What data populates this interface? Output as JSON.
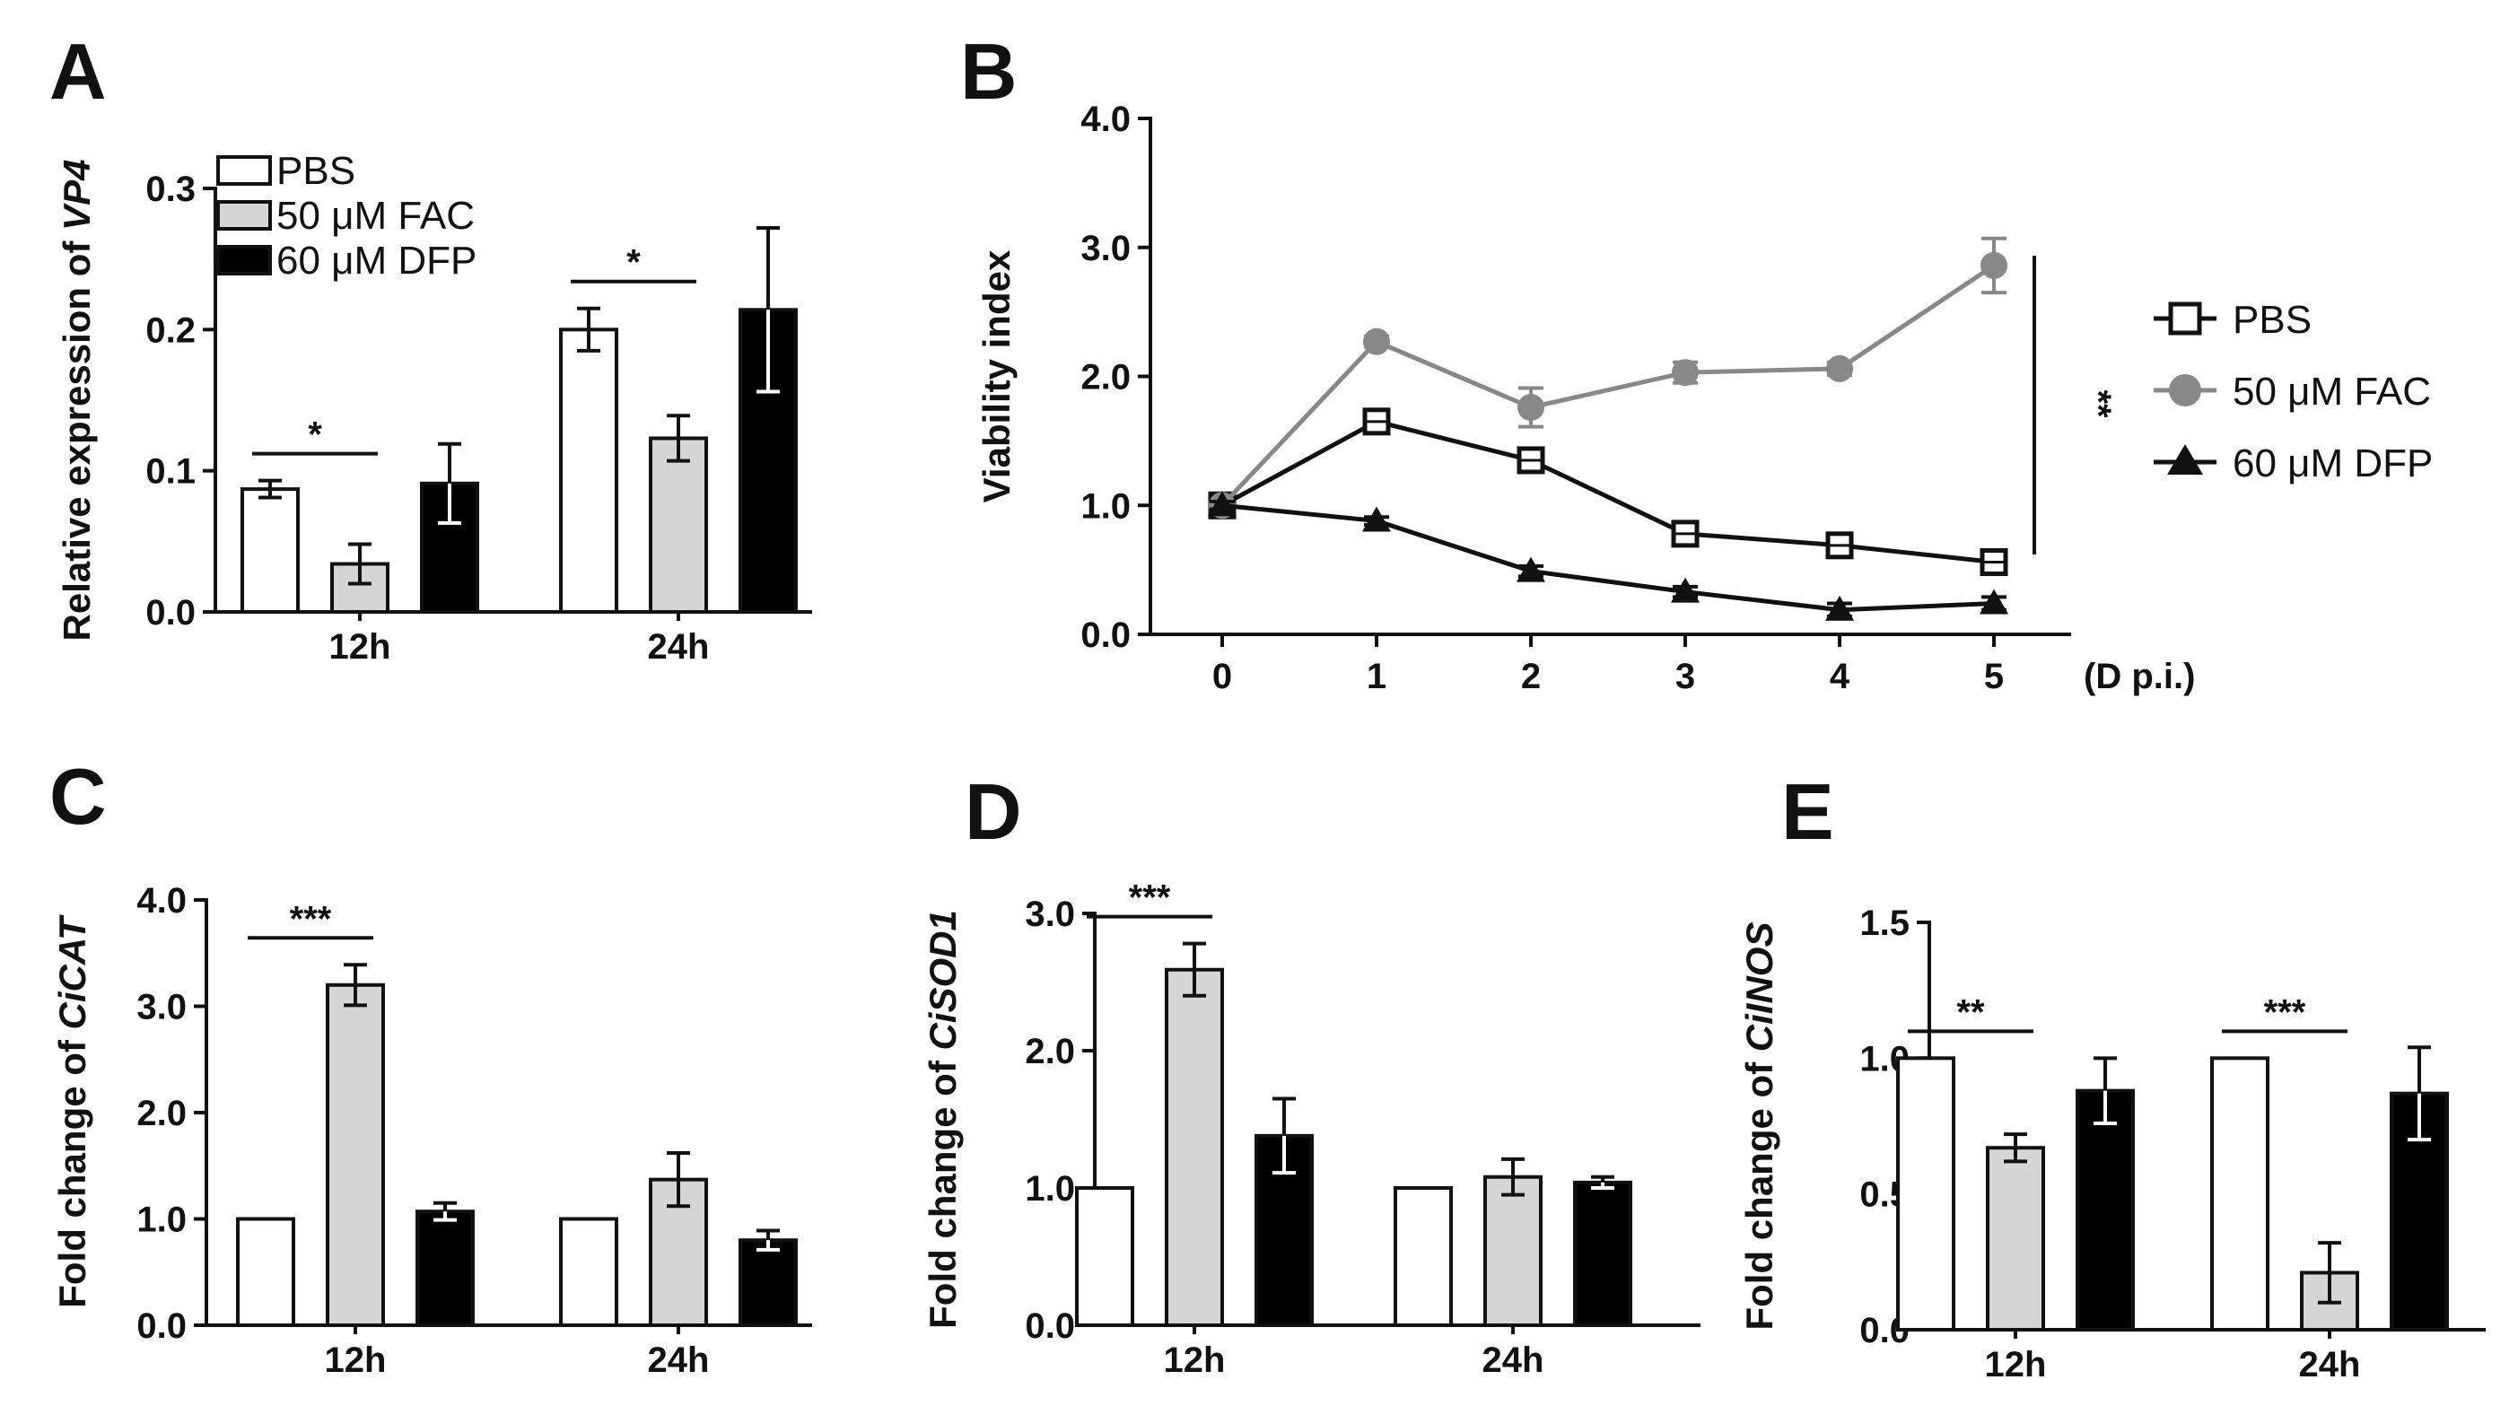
{
  "colors": {
    "pbs": "#ffffff",
    "fac": "#d6d6d6",
    "dfp": "#000000",
    "fac_line": "#888888",
    "axis": "#111111"
  },
  "chart_data": [
    {
      "panel": "A",
      "type": "bar",
      "ylabel_prefix": "Relative expression of ",
      "ylabel_gene": "VP4",
      "ylim": [
        0,
        0.3
      ],
      "yticks": [
        "0.0",
        "0.1",
        "0.2",
        "0.3"
      ],
      "yticks_values": [
        0,
        0.1,
        0.2,
        0.3
      ],
      "categories": [
        "12h",
        "24h"
      ],
      "series": [
        {
          "name": "PBS",
          "values": [
            0.087,
            0.2
          ],
          "errors": [
            0.006,
            0.015
          ]
        },
        {
          "name": "50 μM FAC",
          "values": [
            0.034,
            0.123
          ],
          "errors": [
            0.014,
            0.016
          ]
        },
        {
          "name": "60 μM DFP",
          "values": [
            0.091,
            0.214
          ],
          "errors": [
            0.028,
            0.058
          ]
        }
      ],
      "significance": [
        {
          "category": "12h",
          "from": 0,
          "to": 1,
          "label": "*"
        },
        {
          "category": "24h",
          "from": 0,
          "to": 1,
          "label": "*"
        }
      ],
      "legend": [
        "PBS",
        "50 μM FAC",
        "60 μM DFP"
      ]
    },
    {
      "panel": "B",
      "type": "line",
      "ylabel": "Viability index",
      "xlabel": "(D p.i.)",
      "ylim": [
        0,
        4
      ],
      "yticks": [
        "0.0",
        "1.0",
        "2.0",
        "3.0",
        "4.0"
      ],
      "yticks_values": [
        0,
        1,
        2,
        3,
        4
      ],
      "x": [
        0,
        1,
        2,
        3,
        4,
        5
      ],
      "xticks": [
        "0",
        "1",
        "2",
        "3",
        "4",
        "5"
      ],
      "series": [
        {
          "name": "PBS",
          "marker": "square",
          "values": [
            1.0,
            1.65,
            1.35,
            0.78,
            0.69,
            0.56
          ],
          "errors": [
            0.03,
            0.03,
            0.04,
            0.04,
            0.04,
            0.03
          ]
        },
        {
          "name": "50 μM FAC",
          "marker": "circle",
          "values": [
            1.0,
            2.27,
            1.76,
            2.03,
            2.06,
            2.86
          ],
          "errors": [
            0.03,
            0.04,
            0.15,
            0.08,
            0.05,
            0.21
          ]
        },
        {
          "name": "60 μM DFP",
          "marker": "triangle",
          "values": [
            1.0,
            0.88,
            0.49,
            0.33,
            0.19,
            0.24
          ],
          "errors": [
            0.03,
            0.03,
            0.04,
            0.04,
            0.05,
            0.05
          ]
        }
      ],
      "significance_label": "**",
      "legend": [
        "PBS",
        "50 μM FAC",
        "60 μM DFP"
      ]
    },
    {
      "panel": "C",
      "type": "bar",
      "ylabel_prefix": "Fold change of ",
      "ylabel_gene": "CiCAT",
      "ylim": [
        0,
        4
      ],
      "yticks": [
        "0.0",
        "1.0",
        "2.0",
        "3.0",
        "4.0"
      ],
      "yticks_values": [
        0,
        1,
        2,
        3,
        4
      ],
      "categories": [
        "12h",
        "24h"
      ],
      "series": [
        {
          "name": "PBS",
          "values": [
            1.0,
            1.0
          ],
          "errors": [
            0,
            0
          ]
        },
        {
          "name": "50 μM FAC",
          "values": [
            3.2,
            1.37
          ],
          "errors": [
            0.19,
            0.25
          ]
        },
        {
          "name": "60 μM DFP",
          "values": [
            1.07,
            0.8
          ],
          "errors": [
            0.08,
            0.09
          ]
        }
      ],
      "significance": [
        {
          "category": "12h",
          "from": 0,
          "to": 1,
          "label": "***"
        }
      ]
    },
    {
      "panel": "D",
      "type": "bar",
      "ylabel_prefix": "Fold change of ",
      "ylabel_gene": "CiSOD1",
      "ylim": [
        0,
        3
      ],
      "yticks": [
        "0.0",
        "1.0",
        "2.0",
        "3.0"
      ],
      "yticks_values": [
        0,
        1,
        2,
        3
      ],
      "categories": [
        "12h",
        "24h"
      ],
      "series": [
        {
          "name": "PBS",
          "values": [
            1.0,
            1.0
          ],
          "errors": [
            0,
            0
          ]
        },
        {
          "name": "50 μM FAC",
          "values": [
            2.59,
            1.08
          ],
          "errors": [
            0.19,
            0.13
          ]
        },
        {
          "name": "60 μM DFP",
          "values": [
            1.38,
            1.04
          ],
          "errors": [
            0.27,
            0.04
          ]
        }
      ],
      "significance": [
        {
          "category": "12h",
          "from": 0,
          "to": 1,
          "label": "***"
        }
      ]
    },
    {
      "panel": "E",
      "type": "bar",
      "ylabel_prefix": "Fold change of ",
      "ylabel_gene": "CiINOS",
      "ylim": [
        0,
        1.5
      ],
      "yticks": [
        "0.0",
        "0.5",
        "1.0",
        "1.5"
      ],
      "yticks_values": [
        0,
        0.5,
        1,
        1.5
      ],
      "categories": [
        "12h",
        "24h"
      ],
      "series": [
        {
          "name": "PBS",
          "values": [
            1.0,
            1.0
          ],
          "errors": [
            0,
            0
          ]
        },
        {
          "name": "50 μM FAC",
          "values": [
            0.67,
            0.21
          ],
          "errors": [
            0.05,
            0.11
          ]
        },
        {
          "name": "60 μM DFP",
          "values": [
            0.88,
            0.87
          ],
          "errors": [
            0.12,
            0.17
          ]
        }
      ],
      "significance": [
        {
          "category": "12h",
          "from": 0,
          "to": 1,
          "label": "**"
        },
        {
          "category": "24h",
          "from": 0,
          "to": 1,
          "label": "***"
        }
      ]
    }
  ]
}
